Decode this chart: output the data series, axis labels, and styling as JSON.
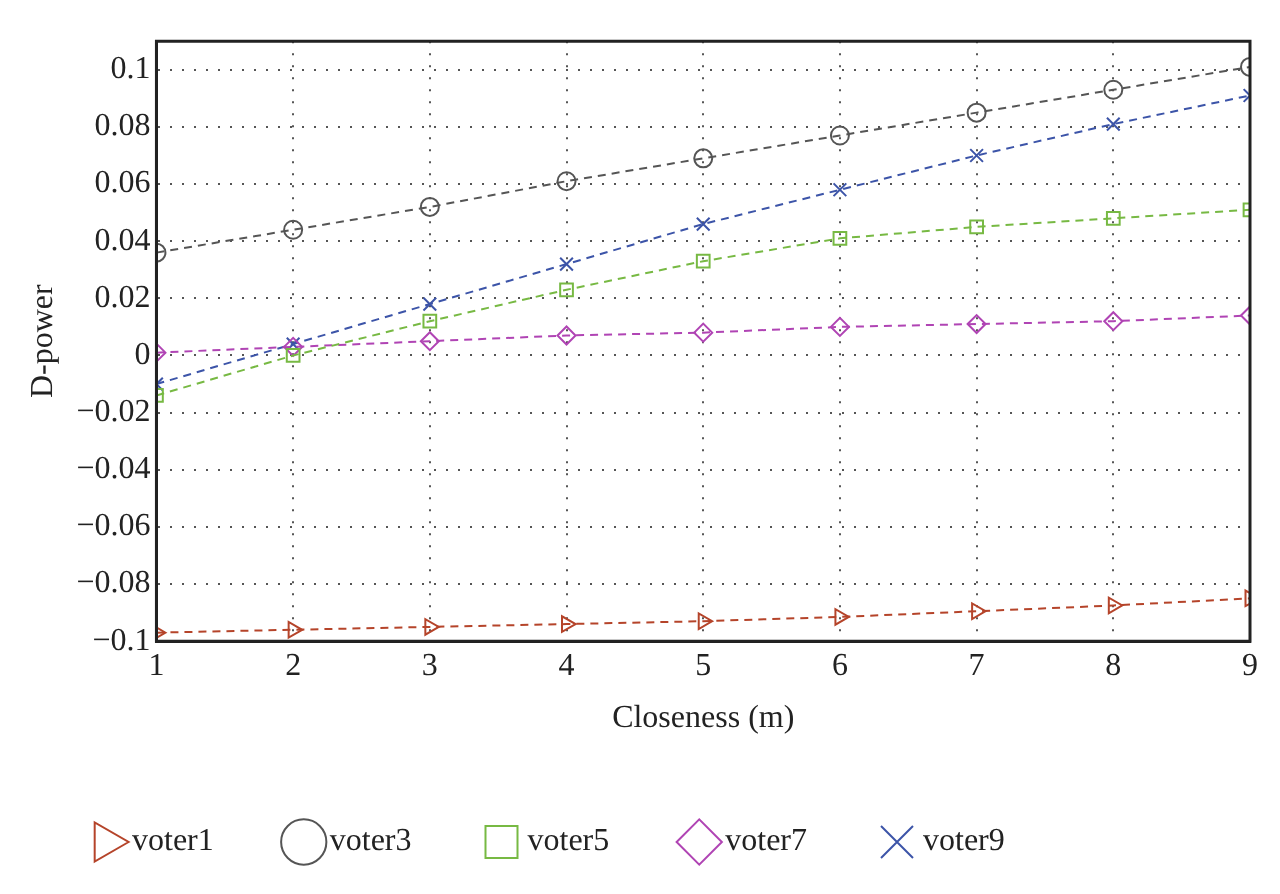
{
  "chart_data": {
    "type": "line",
    "xlabel": "Closeness (m)",
    "ylabel": "D-power",
    "x": [
      1,
      2,
      3,
      4,
      5,
      6,
      7,
      8,
      9
    ],
    "xlim": [
      1,
      9
    ],
    "xticks": [
      1,
      2,
      3,
      4,
      5,
      6,
      7,
      8,
      9
    ],
    "ylim": [
      -0.1,
      0.11
    ],
    "yticks": [
      -0.1,
      -0.08,
      -0.06,
      -0.04,
      -0.02,
      0,
      0.02,
      0.04,
      0.06,
      0.08,
      0.1
    ],
    "grid": true,
    "legend": "bottom",
    "line_style": "dashed",
    "series": [
      {
        "name": "voter1",
        "color": "#b5442a",
        "marker": "triangle",
        "values": [
          -0.097,
          -0.096,
          -0.095,
          -0.094,
          -0.093,
          -0.0915,
          -0.0895,
          -0.0875,
          -0.085
        ]
      },
      {
        "name": "voter3",
        "color": "#555555",
        "marker": "circle",
        "values": [
          0.036,
          0.044,
          0.052,
          0.061,
          0.069,
          0.077,
          0.085,
          0.093,
          0.101
        ]
      },
      {
        "name": "voter5",
        "color": "#77b943",
        "marker": "square",
        "values": [
          -0.014,
          0,
          0.012,
          0.023,
          0.033,
          0.041,
          0.045,
          0.048,
          0.051
        ]
      },
      {
        "name": "voter7",
        "color": "#b044b4",
        "marker": "diamond",
        "values": [
          0.001,
          0.003,
          0.005,
          0.007,
          0.008,
          0.01,
          0.011,
          0.012,
          0.014
        ]
      },
      {
        "name": "voter9",
        "color": "#3c54a8",
        "marker": "cross",
        "values": [
          -0.01,
          0.004,
          0.018,
          0.032,
          0.046,
          0.058,
          0.07,
          0.081,
          0.091
        ]
      }
    ]
  }
}
